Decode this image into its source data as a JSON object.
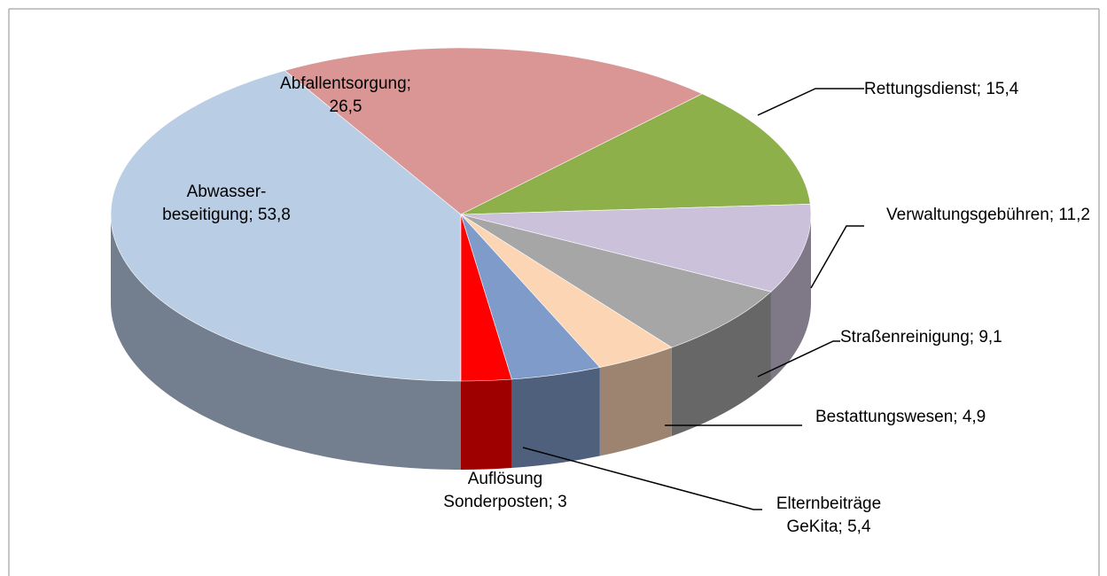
{
  "chart_data": {
    "type": "pie3d",
    "categories": [
      "Abwasser-beseitigung",
      "Abfallentsorgung",
      "Rettungsdienst",
      "Verwaltungsgebühren",
      "Straßenreinigung",
      "Bestattungswesen",
      "Elternbeiträge GeKita",
      "Auflösung Sonderposten"
    ],
    "values": [
      53.8,
      26.5,
      15.4,
      11.2,
      9.1,
      4.9,
      5.4,
      3
    ],
    "value_labels": [
      "53,8",
      "26,5",
      "15,4",
      "11,2",
      "9,1",
      "4,9",
      "5,4",
      "3"
    ],
    "label_separator": "; ",
    "colors": [
      "#b9cde5",
      "#d99694",
      "#8db04a",
      "#ccc1da",
      "#a6a6a6",
      "#fcd5b5",
      "#7f9bc9",
      "#ff0000"
    ]
  }
}
